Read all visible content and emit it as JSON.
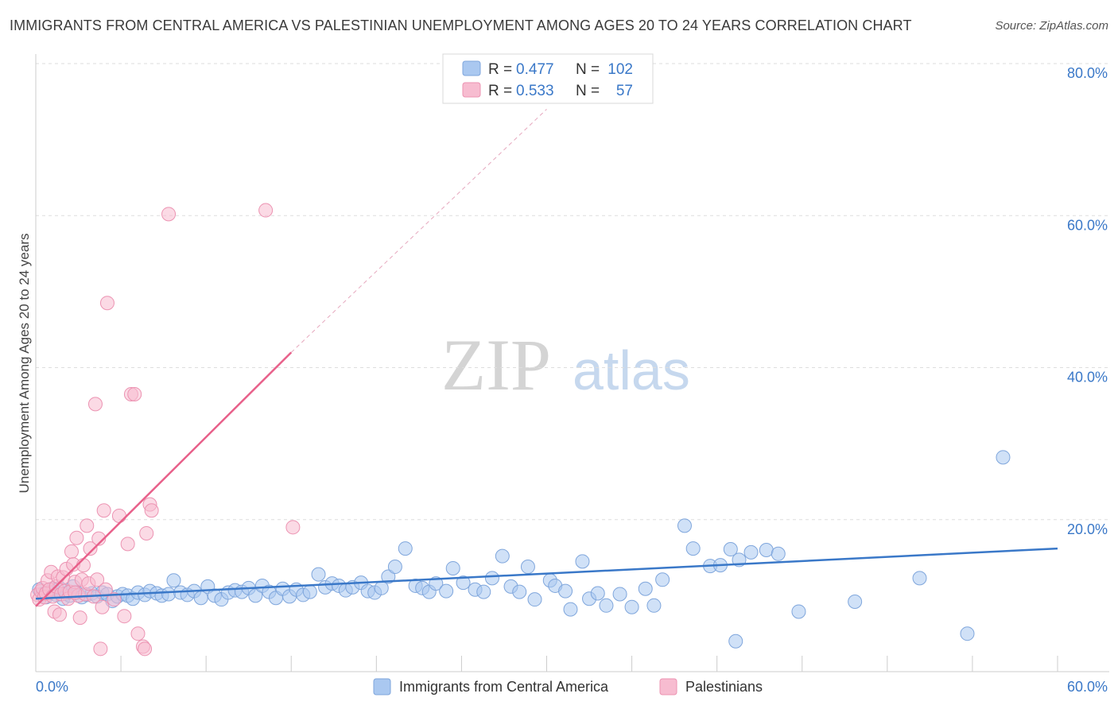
{
  "title": "IMMIGRANTS FROM CENTRAL AMERICA VS PALESTINIAN UNEMPLOYMENT AMONG AGES 20 TO 24 YEARS CORRELATION CHART",
  "source": "Source: ZipAtlas.com",
  "watermark": {
    "zip": "ZIP",
    "atlas": "atlas"
  },
  "colors": {
    "blue": "#3a78c8",
    "blue_fill": "#aac8f0",
    "blue_stroke": "#7fa6dc",
    "pink": "#e8608a",
    "pink_fill": "#f7bcd0",
    "pink_stroke": "#ec93b2",
    "grid": "#dddddd"
  },
  "legend": {
    "rows": [
      {
        "r_label": "R = ",
        "r_value": "0.477",
        "n_label": "N = ",
        "n_value": "102"
      },
      {
        "r_label": "R = ",
        "r_value": "0.533",
        "n_label": "N = ",
        "n_value": "57"
      }
    ]
  },
  "bottom_legend": [
    "Immigrants from Central America",
    "Palestinians"
  ],
  "chart_data": {
    "type": "scatter",
    "title": "IMMIGRANTS FROM CENTRAL AMERICA VS PALESTINIAN UNEMPLOYMENT AMONG AGES 20 TO 24 YEARS CORRELATION CHART",
    "xlabel": "",
    "ylabel": "Unemployment Among Ages 20 to 24 years",
    "xlim": [
      0,
      60
    ],
    "ylim": [
      0,
      80
    ],
    "x_tick_labels": [
      "0.0%",
      "60.0%"
    ],
    "y_tick_labels": [
      "20.0%",
      "40.0%",
      "60.0%",
      "80.0%"
    ],
    "y_ticks": [
      20,
      40,
      60,
      80
    ],
    "grid": true,
    "legend_position": "top-center",
    "series": [
      {
        "name": "Immigrants from Central America",
        "r": 0.477,
        "n": 102,
        "trend": {
          "x0": 0,
          "y0": 9.6,
          "x1": 60,
          "y1": 16.2
        },
        "points": [
          [
            0.2,
            10.8
          ],
          [
            0.4,
            10.2
          ],
          [
            0.6,
            9.8
          ],
          [
            0.8,
            10.5
          ],
          [
            1.0,
            10.9
          ],
          [
            1.2,
            10.1
          ],
          [
            1.4,
            11.0
          ],
          [
            1.6,
            9.6
          ],
          [
            1.8,
            10.3
          ],
          [
            2.0,
            10.0
          ],
          [
            2.2,
            11.2
          ],
          [
            2.4,
            10.4
          ],
          [
            2.7,
            9.8
          ],
          [
            3.0,
            10.1
          ],
          [
            3.3,
            10.3
          ],
          [
            3.6,
            9.9
          ],
          [
            3.9,
            10.4
          ],
          [
            4.2,
            10.2
          ],
          [
            4.5,
            9.3
          ],
          [
            4.8,
            9.9
          ],
          [
            5.1,
            10.2
          ],
          [
            5.4,
            10.0
          ],
          [
            5.7,
            9.6
          ],
          [
            6.0,
            10.4
          ],
          [
            6.4,
            10.1
          ],
          [
            6.7,
            10.6
          ],
          [
            7.1,
            10.3
          ],
          [
            7.4,
            10.0
          ],
          [
            7.8,
            10.2
          ],
          [
            8.1,
            12.0
          ],
          [
            8.5,
            10.4
          ],
          [
            8.9,
            10.1
          ],
          [
            9.3,
            10.6
          ],
          [
            9.7,
            9.7
          ],
          [
            10.1,
            11.2
          ],
          [
            10.5,
            10.0
          ],
          [
            10.9,
            9.5
          ],
          [
            11.3,
            10.4
          ],
          [
            11.7,
            10.7
          ],
          [
            12.1,
            10.5
          ],
          [
            12.5,
            11.0
          ],
          [
            12.9,
            10.0
          ],
          [
            13.3,
            11.3
          ],
          [
            13.7,
            10.5
          ],
          [
            14.1,
            9.7
          ],
          [
            14.5,
            10.9
          ],
          [
            14.9,
            9.9
          ],
          [
            15.3,
            10.8
          ],
          [
            15.7,
            10.1
          ],
          [
            16.1,
            10.5
          ],
          [
            16.6,
            12.8
          ],
          [
            17.0,
            11.1
          ],
          [
            17.4,
            11.6
          ],
          [
            17.8,
            11.3
          ],
          [
            18.2,
            10.7
          ],
          [
            18.6,
            11.1
          ],
          [
            19.1,
            11.7
          ],
          [
            19.5,
            10.6
          ],
          [
            19.9,
            10.4
          ],
          [
            20.3,
            11.0
          ],
          [
            20.7,
            12.5
          ],
          [
            21.1,
            13.8
          ],
          [
            21.7,
            16.2
          ],
          [
            22.3,
            11.3
          ],
          [
            22.7,
            11.0
          ],
          [
            23.1,
            10.5
          ],
          [
            23.5,
            11.6
          ],
          [
            24.1,
            10.6
          ],
          [
            24.5,
            13.6
          ],
          [
            25.1,
            11.7
          ],
          [
            25.8,
            10.8
          ],
          [
            26.3,
            10.5
          ],
          [
            26.8,
            12.3
          ],
          [
            27.4,
            15.2
          ],
          [
            27.9,
            11.2
          ],
          [
            28.4,
            10.5
          ],
          [
            28.9,
            13.8
          ],
          [
            29.3,
            9.5
          ],
          [
            30.2,
            12.0
          ],
          [
            30.5,
            11.3
          ],
          [
            31.1,
            10.6
          ],
          [
            31.4,
            8.2
          ],
          [
            32.1,
            14.5
          ],
          [
            32.5,
            9.6
          ],
          [
            33.0,
            10.3
          ],
          [
            33.5,
            8.7
          ],
          [
            34.3,
            10.2
          ],
          [
            35.0,
            8.5
          ],
          [
            35.8,
            10.9
          ],
          [
            36.3,
            8.7
          ],
          [
            36.8,
            12.1
          ],
          [
            38.1,
            19.2
          ],
          [
            38.6,
            16.2
          ],
          [
            39.6,
            13.9
          ],
          [
            40.2,
            14.0
          ],
          [
            40.8,
            16.1
          ],
          [
            41.3,
            14.7
          ],
          [
            42.0,
            15.7
          ],
          [
            42.9,
            16.0
          ],
          [
            43.6,
            15.5
          ],
          [
            44.8,
            7.9
          ],
          [
            48.1,
            9.2
          ],
          [
            51.9,
            12.3
          ],
          [
            54.7,
            5.0
          ],
          [
            56.8,
            28.2
          ],
          [
            41.1,
            4.0
          ]
        ]
      },
      {
        "name": "Palestinians",
        "r": 0.533,
        "n": 57,
        "trend": {
          "x0": 0,
          "y0": 8.6,
          "x1": 15.0,
          "y1": 42.0
        },
        "trend_dashed": {
          "x0": 15.0,
          "y0": 42.0,
          "x1": 30.0,
          "y1": 74.0
        },
        "points": [
          [
            0.1,
            10.1
          ],
          [
            0.2,
            9.5
          ],
          [
            0.3,
            10.6
          ],
          [
            0.4,
            11.0
          ],
          [
            0.5,
            9.8
          ],
          [
            0.6,
            10.3
          ],
          [
            0.7,
            12.0
          ],
          [
            0.8,
            10.8
          ],
          [
            0.9,
            13.1
          ],
          [
            1.0,
            9.9
          ],
          [
            1.1,
            7.9
          ],
          [
            1.2,
            11.2
          ],
          [
            1.3,
            12.5
          ],
          [
            1.4,
            7.5
          ],
          [
            1.5,
            10.2
          ],
          [
            1.6,
            12.4
          ],
          [
            1.7,
            10.6
          ],
          [
            1.8,
            13.5
          ],
          [
            1.9,
            9.6
          ],
          [
            2.0,
            10.5
          ],
          [
            2.1,
            15.8
          ],
          [
            2.2,
            14.1
          ],
          [
            2.3,
            11.8
          ],
          [
            2.4,
            17.6
          ],
          [
            2.5,
            10.0
          ],
          [
            2.6,
            7.1
          ],
          [
            2.7,
            12.1
          ],
          [
            2.8,
            14.0
          ],
          [
            2.9,
            10.2
          ],
          [
            3.0,
            19.2
          ],
          [
            3.1,
            11.6
          ],
          [
            3.2,
            16.2
          ],
          [
            3.4,
            9.9
          ],
          [
            3.5,
            35.2
          ],
          [
            3.6,
            12.1
          ],
          [
            3.7,
            17.5
          ],
          [
            3.8,
            3.0
          ],
          [
            3.9,
            8.5
          ],
          [
            4.0,
            21.2
          ],
          [
            4.1,
            10.8
          ],
          [
            4.2,
            48.5
          ],
          [
            4.6,
            9.5
          ],
          [
            4.9,
            20.5
          ],
          [
            5.2,
            7.3
          ],
          [
            5.4,
            16.8
          ],
          [
            5.6,
            36.5
          ],
          [
            5.8,
            36.5
          ],
          [
            6.0,
            5.0
          ],
          [
            6.3,
            3.3
          ],
          [
            6.4,
            3.0
          ],
          [
            6.5,
            18.2
          ],
          [
            6.7,
            22.0
          ],
          [
            6.8,
            21.2
          ],
          [
            7.8,
            60.2
          ],
          [
            13.5,
            60.7
          ],
          [
            15.1,
            19.0
          ],
          [
            2.3,
            10.4
          ]
        ]
      }
    ]
  }
}
